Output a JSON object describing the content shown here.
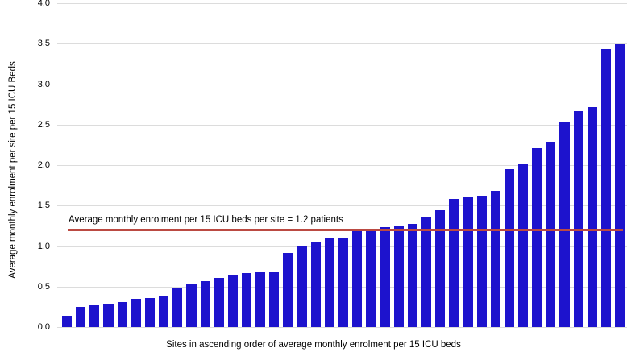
{
  "figure": {
    "y_axis_title": "Average monthly enrolment per site per 15 ICU Beds",
    "x_axis_title": "Sites in ascending order of average monthly enrolment per 15 ICU beds",
    "annotation_label": "Average monthly enrolment per 15 ICU beds per site = 1.2 patients",
    "colors": {
      "bar": "#1d13cd",
      "reference_line": "#bb4a42",
      "gridline": "#dcdcdc",
      "text": "#000000",
      "background": "#ffffff"
    }
  },
  "chart_data": {
    "type": "bar",
    "title": "",
    "xlabel": "Sites in ascending order of average monthly enrolment per 15 ICU beds",
    "ylabel": "Average monthly enrolment per site per 15 ICU Beds",
    "ylim": [
      0.0,
      4.0
    ],
    "yticks": [
      0.0,
      0.5,
      1.0,
      1.5,
      2.0,
      2.5,
      3.0,
      3.5,
      4.0
    ],
    "grid": true,
    "legend": "none",
    "x_tick_labels": "none (sites unlabeled, ascending order)",
    "reference_line": {
      "value": 1.2,
      "label": "Average monthly enrolment per 15 ICU beds per site = 1.2 patients",
      "color": "#bb4a42"
    },
    "series_name": "Average monthly enrolment per site per 15 ICU beds",
    "values": [
      0.14,
      0.25,
      0.27,
      0.29,
      0.31,
      0.35,
      0.36,
      0.38,
      0.49,
      0.53,
      0.57,
      0.61,
      0.65,
      0.67,
      0.68,
      0.68,
      0.92,
      1.01,
      1.06,
      1.1,
      1.11,
      1.18,
      1.2,
      1.23,
      1.24,
      1.27,
      1.35,
      1.44,
      1.58,
      1.6,
      1.62,
      1.68,
      1.95,
      2.02,
      2.21,
      2.29,
      2.53,
      2.67,
      2.72,
      3.43,
      3.49
    ]
  }
}
